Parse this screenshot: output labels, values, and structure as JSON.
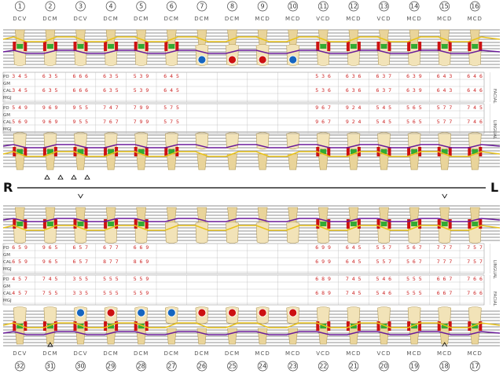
{
  "upper": {
    "teeth": [
      "1",
      "2",
      "3",
      "4",
      "5",
      "6",
      "7",
      "8",
      "9",
      "10",
      "11",
      "12",
      "13",
      "14",
      "15",
      "16"
    ],
    "surfaces": [
      "DCV",
      "DCM",
      "DCV",
      "DCM",
      "DCM",
      "DCM",
      "DCM",
      "DCM",
      "MCD",
      "MCD",
      "VCD",
      "MCD",
      "VCD",
      "MCD",
      "MCD",
      "MCD"
    ],
    "facial_label": "FACIAL",
    "lingual_label": "LINGUAL",
    "facial_rows": [
      {
        "label": "PD",
        "values": [
          "345",
          "635",
          "666",
          "635",
          "539",
          "645",
          "",
          "",
          "",
          "",
          "536",
          "636",
          "637",
          "639",
          "643",
          "646"
        ]
      },
      {
        "label": "GM",
        "values": [
          "",
          "",
          "",
          "",
          "",
          "",
          "",
          "",
          "",
          "",
          "",
          "",
          "",
          "",
          "",
          ""
        ]
      },
      {
        "label": "CAL",
        "values": [
          "345",
          "635",
          "666",
          "635",
          "539",
          "645",
          "",
          "",
          "",
          "",
          "536",
          "636",
          "637",
          "639",
          "643",
          "646"
        ]
      },
      {
        "label": "MGJ",
        "values": [
          "",
          "",
          "",
          "",
          "",
          "",
          "",
          "",
          "",
          "",
          "",
          "",
          "",
          "",
          "",
          ""
        ]
      }
    ],
    "lingual_rows": [
      {
        "label": "PD",
        "values": [
          "549",
          "969",
          "955",
          "747",
          "799",
          "575",
          "",
          "",
          "",
          "",
          "967",
          "924",
          "545",
          "565",
          "577",
          "745"
        ]
      },
      {
        "label": "GM",
        "values": [
          "",
          "",
          "",
          "",
          "",
          "",
          "",
          "",
          "",
          "",
          "",
          "",
          "",
          "",
          "",
          ""
        ]
      },
      {
        "label": "CAL",
        "values": [
          "569",
          "969",
          "955",
          "767",
          "799",
          "575",
          "",
          "",
          "",
          "",
          "967",
          "924",
          "545",
          "565",
          "577",
          "746"
        ]
      },
      {
        "label": "MGJ",
        "values": [
          "",
          "",
          "",
          "",
          "",
          "",
          "",
          "",
          "",
          "",
          "",
          "",
          "",
          "",
          "",
          ""
        ]
      }
    ]
  },
  "lower": {
    "teeth": [
      "32",
      "31",
      "30",
      "29",
      "28",
      "27",
      "26",
      "25",
      "24",
      "23",
      "22",
      "21",
      "20",
      "19",
      "18",
      "17"
    ],
    "surfaces": [
      "DCV",
      "DCM",
      "DCV",
      "DCM",
      "DCM",
      "DCM",
      "DCM",
      "DCM",
      "MCD",
      "MCD",
      "VCD",
      "MCD",
      "VCD",
      "MCD",
      "MCD",
      "MCD"
    ],
    "lingual_label": "LINGUAL",
    "facial_label": "FACIAL",
    "lingual_rows": [
      {
        "label": "PD",
        "values": [
          "659",
          "965",
          "657",
          "677",
          "669",
          "",
          "",
          "",
          "",
          "",
          "699",
          "645",
          "557",
          "567",
          "777",
          "757"
        ]
      },
      {
        "label": "GM",
        "values": [
          "",
          "",
          "",
          "",
          "",
          "",
          "",
          "",
          "",
          "",
          "",
          "",
          "",
          "",
          "",
          ""
        ]
      },
      {
        "label": "CAL",
        "values": [
          "659",
          "965",
          "657",
          "877",
          "869",
          "",
          "",
          "",
          "",
          "",
          "699",
          "645",
          "557",
          "567",
          "777",
          "757"
        ]
      },
      {
        "label": "MGJ",
        "values": [
          "",
          "",
          "",
          "",
          "",
          "",
          "",
          "",
          "",
          "",
          "",
          "",
          "",
          "",
          "",
          ""
        ]
      }
    ],
    "facial_rows": [
      {
        "label": "PD",
        "values": [
          "457",
          "745",
          "355",
          "555",
          "559",
          "",
          "",
          "",
          "",
          "",
          "689",
          "745",
          "546",
          "555",
          "667",
          "766"
        ]
      },
      {
        "label": "GM",
        "values": [
          "",
          "",
          "",
          "",
          "",
          "",
          "",
          "",
          "",
          "",
          "",
          "",
          "",
          "",
          "",
          ""
        ]
      },
      {
        "label": "CAL",
        "values": [
          "457",
          "755",
          "335",
          "555",
          "559",
          "",
          "",
          "",
          "",
          "",
          "689",
          "745",
          "546",
          "555",
          "667",
          "766"
        ]
      },
      {
        "label": "MGJ",
        "values": [
          "",
          "",
          "",
          "",
          "",
          "",
          "",
          "",
          "",
          "",
          "",
          "",
          "",
          "",
          "",
          ""
        ]
      }
    ]
  },
  "side_left": "R",
  "side_right": "L",
  "colors": {
    "red": "#cc1111",
    "green": "#33aa33",
    "yellow": "#e8c21a",
    "purple": "#6a1b9a",
    "blue": "#1565c0",
    "dark_blue": "#0d3b8c",
    "line": "#000000"
  }
}
